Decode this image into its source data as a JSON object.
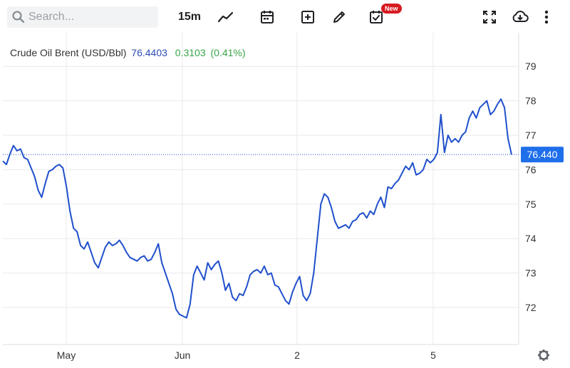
{
  "search": {
    "placeholder": "Search..."
  },
  "toolbar": {
    "interval_label": "15m",
    "new_badge": "New",
    "icons": [
      "line-chart-icon",
      "calendar-icon",
      "add-indicator-icon",
      "draw-icon",
      "calendar-check-icon",
      "fullscreen-icon",
      "download-icon",
      "more-icon"
    ]
  },
  "legend": {
    "symbol": "Crude Oil Brent (USD/Bbl)",
    "last": "76.4403",
    "change": "0.3103",
    "change_pct": "(0.41%)"
  },
  "colors": {
    "line": "#1f4fcb",
    "last_label_bg": "#1f6feb",
    "change_up": "#3aa44a",
    "grid": "#e8eaed"
  },
  "chart_data": {
    "type": "line",
    "title": "Crude Oil Brent (USD/Bbl)",
    "x_tick_labels": [
      "May",
      "Jun",
      "2",
      "5"
    ],
    "y_ticks": [
      72,
      73,
      74,
      75,
      76,
      77,
      78,
      79
    ],
    "ylim": [
      71.05,
      79.8
    ],
    "last_value_label": "76.440",
    "grid": true,
    "series": [
      {
        "name": "Crude Oil Brent (USD/Bbl)",
        "values": [
          76.25,
          76.15,
          76.45,
          76.7,
          76.55,
          76.6,
          76.35,
          76.3,
          76.05,
          75.8,
          75.4,
          75.2,
          75.6,
          75.95,
          76.0,
          76.1,
          76.15,
          76.05,
          75.5,
          74.8,
          74.3,
          74.2,
          73.8,
          73.7,
          73.9,
          73.6,
          73.3,
          73.15,
          73.45,
          73.75,
          73.9,
          73.8,
          73.85,
          73.95,
          73.8,
          73.6,
          73.45,
          73.4,
          73.35,
          73.45,
          73.5,
          73.35,
          73.4,
          73.6,
          73.85,
          73.3,
          73.0,
          72.7,
          72.4,
          71.95,
          71.8,
          71.75,
          71.7,
          72.1,
          72.95,
          73.2,
          73.0,
          72.8,
          73.3,
          73.1,
          73.25,
          73.35,
          73.0,
          72.5,
          72.7,
          72.3,
          72.2,
          72.4,
          72.35,
          72.6,
          72.95,
          73.05,
          73.1,
          73.0,
          73.2,
          72.95,
          73.0,
          72.65,
          72.6,
          72.4,
          72.2,
          72.1,
          72.45,
          72.7,
          72.9,
          72.35,
          72.2,
          72.4,
          73.0,
          74.0,
          75.0,
          75.3,
          75.2,
          74.9,
          74.5,
          74.3,
          74.35,
          74.4,
          74.3,
          74.5,
          74.55,
          74.7,
          74.75,
          74.6,
          74.8,
          74.7,
          75.0,
          75.2,
          74.9,
          75.5,
          75.45,
          75.6,
          75.7,
          75.9,
          76.1,
          76.0,
          76.2,
          75.85,
          75.9,
          76.0,
          76.3,
          76.2,
          76.3,
          76.5,
          77.6,
          76.5,
          77.0,
          76.8,
          76.9,
          76.8,
          77.0,
          77.1,
          77.5,
          77.7,
          77.5,
          77.8,
          77.9,
          78.0,
          77.6,
          77.7,
          77.9,
          78.05,
          77.8,
          76.9,
          76.44
        ]
      }
    ]
  }
}
